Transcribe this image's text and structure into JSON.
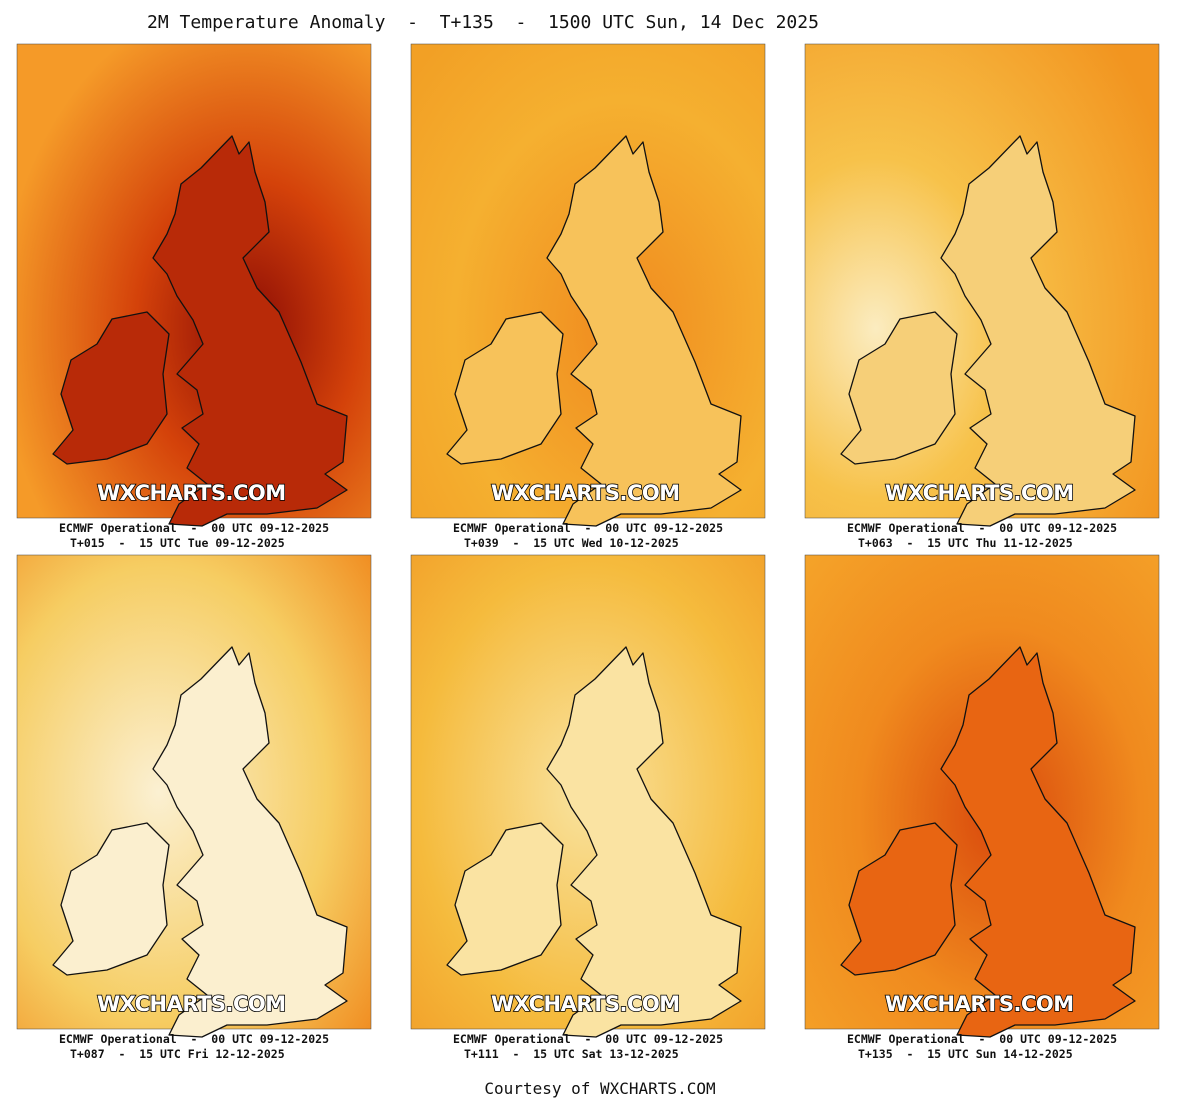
{
  "header": {
    "title": "2M Temperature Anomaly  -  T+135  -  1500 UTC Sun, 14 Dec 2025"
  },
  "panels": [
    {
      "watermark": "WXCHARTS.COM",
      "model": "ECMWF Operational  -  00 UTC 09-12-2025",
      "valid": "T+015  -  15 UTC Tue 09-12-2025"
    },
    {
      "watermark": "WXCHARTS.COM",
      "model": "ECMWF Operational  -  00 UTC 09-12-2025",
      "valid": "T+039  -  15 UTC Wed 10-12-2025"
    },
    {
      "watermark": "WXCHARTS.COM",
      "model": "ECMWF Operational  -  00 UTC 09-12-2025",
      "valid": "T+063  -  15 UTC Thu 11-12-2025"
    },
    {
      "watermark": "WXCHARTS.COM",
      "model": "ECMWF Operational  -  00 UTC 09-12-2025",
      "valid": "T+087  -  15 UTC Fri 12-12-2025"
    },
    {
      "watermark": "WXCHARTS.COM",
      "model": "ECMWF Operational  -  00 UTC 09-12-2025",
      "valid": "T+111  -  15 UTC Sat 13-12-2025"
    },
    {
      "watermark": "WXCHARTS.COM",
      "model": "ECMWF Operational  -  00 UTC 09-12-2025",
      "valid": "T+135  -  15 UTC Sun 14-12-2025"
    }
  ],
  "footer": {
    "credit": "Courtesy of WXCHARTS.COM"
  }
}
